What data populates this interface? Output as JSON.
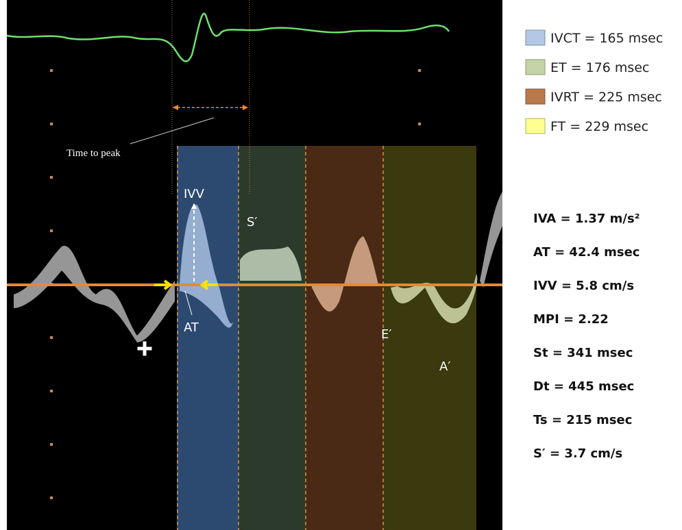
{
  "legend": [
    {
      "label": "IVCT = 165 msec"
    },
    {
      "label": "ET = 176 msec"
    },
    {
      "label": "IVRT = 225 msec"
    },
    {
      "label": "FT = 229 msec"
    }
  ],
  "image_labels": {
    "time_to_peak": "Time to peak",
    "ivv": "IVV",
    "s_prime": "S′",
    "at": "AT",
    "e_prime": "E′",
    "a_prime": "A′"
  },
  "measurements": [
    "IVA = 1.37 m/s²",
    "AT = 42.4 msec",
    "IVV = 5.8 cm/s",
    "MPI = 2.22",
    "St = 341 msec",
    "Dt = 445 msec",
    "Ts = 215 msec",
    "S′ = 3.7 cm/s"
  ]
}
